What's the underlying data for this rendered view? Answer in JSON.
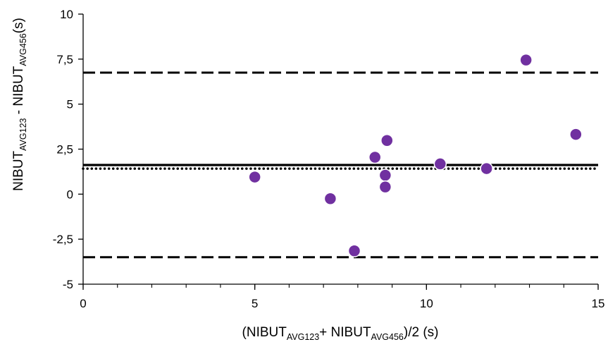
{
  "chart_data": {
    "type": "scatter",
    "xlabel": {
      "main": "(NIBUT",
      "sub1": "AVG123",
      "mid": "+ NIBUT",
      "sub2": "AVG456",
      "end": ")/2 (s)"
    },
    "ylabel": {
      "main": "NIBUT",
      "sub1": "AVG123",
      "mid": " - NIBUT",
      "sub2": "AVG456",
      "end": "(s)"
    },
    "xlim": [
      0,
      15
    ],
    "ylim": [
      -5,
      10
    ],
    "xticks": [
      0,
      5,
      10,
      15
    ],
    "xtick_labels": [
      "0",
      "5",
      "10",
      "15"
    ],
    "yticks": [
      -5,
      -2.5,
      0,
      2.5,
      5,
      7.5,
      10
    ],
    "ytick_labels": [
      "-5",
      "-2,5",
      "0",
      "2,5",
      "5",
      "7,5",
      "10"
    ],
    "x_minor_step": 1,
    "grid": false,
    "legend": "none",
    "series": [
      {
        "points": [
          {
            "x": 5.0,
            "y": 0.95
          },
          {
            "x": 7.2,
            "y": -0.25
          },
          {
            "x": 7.9,
            "y": -3.15
          },
          {
            "x": 8.5,
            "y": 2.05
          },
          {
            "x": 8.8,
            "y": 1.05
          },
          {
            "x": 8.8,
            "y": 0.4
          },
          {
            "x": 8.85,
            "y": 2.98
          },
          {
            "x": 10.4,
            "y": 1.68
          },
          {
            "x": 11.75,
            "y": 1.42
          },
          {
            "x": 12.9,
            "y": 7.45
          },
          {
            "x": 14.35,
            "y": 3.32
          }
        ],
        "color": "#7030a0"
      }
    ],
    "reference_lines": [
      {
        "y": 6.75,
        "style": "dashed"
      },
      {
        "y": 1.62,
        "style": "solid"
      },
      {
        "y": 1.42,
        "style": "dotted"
      },
      {
        "y": -3.5,
        "style": "dashed"
      }
    ]
  }
}
